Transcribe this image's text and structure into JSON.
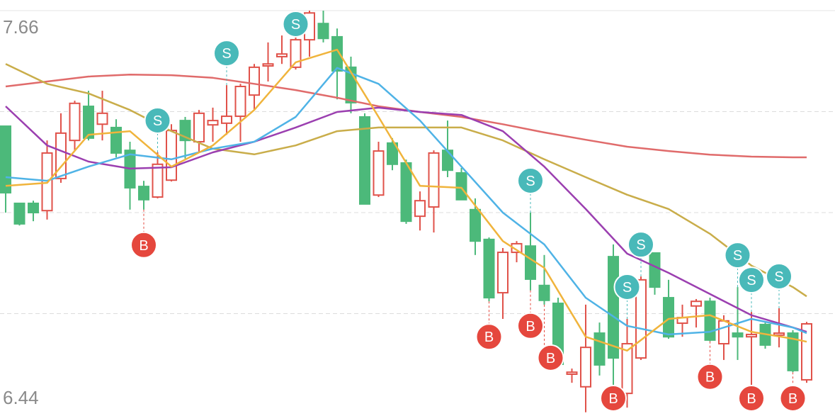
{
  "chart_data": {
    "type": "candlestick",
    "ylim": [
      6.44,
      7.66
    ],
    "yticks": [
      7.66,
      6.44
    ],
    "grid_values": [
      7.355,
      7.05,
      6.745
    ],
    "up_color": "#e0524a",
    "down_color": "#4cb97a",
    "candles": {
      "open": [
        7.311,
        7.078,
        7.078,
        7.056,
        7.153,
        7.268,
        7.371,
        7.317,
        7.307,
        7.238,
        7.129,
        7.097,
        7.148,
        7.328,
        7.264,
        7.315,
        7.32,
        7.341,
        7.405,
        7.493,
        7.521,
        7.489,
        7.572,
        7.621,
        7.581,
        7.489,
        7.339,
        7.103,
        7.26,
        7.2,
        7.039,
        7.067,
        7.238,
        7.17,
        7.059,
        6.969,
        6.808,
        6.93,
        6.949,
        6.83,
        6.776,
        6.562,
        6.524,
        6.686,
        6.917,
        6.504,
        6.611,
        6.928,
        6.793,
        6.716,
        6.768,
        6.782,
        6.654,
        6.686,
        6.675,
        6.712,
        6.68,
        6.686,
        6.545
      ],
      "high": [
        7.311,
        7.078,
        7.086,
        7.268,
        7.35,
        7.388,
        7.418,
        7.418,
        7.332,
        7.264,
        7.146,
        7.232,
        7.317,
        7.339,
        7.36,
        7.367,
        7.435,
        7.439,
        7.499,
        7.564,
        7.585,
        7.606,
        7.66,
        7.66,
        7.606,
        7.521,
        7.35,
        7.264,
        7.275,
        7.21,
        7.114,
        7.238,
        7.328,
        7.185,
        7.093,
        6.975,
        6.943,
        6.964,
        7.05,
        6.922,
        6.793,
        6.579,
        6.772,
        6.718,
        6.954,
        6.729,
        6.857,
        6.93,
        6.847,
        6.772,
        6.789,
        6.793,
        6.74,
        6.825,
        6.75,
        6.718,
        6.761,
        6.695,
        6.72
      ],
      "low": [
        7.05,
        7.011,
        7.024,
        7.029,
        7.14,
        7.236,
        7.268,
        7.268,
        7.217,
        7.059,
        7.059,
        7.093,
        7.144,
        7.213,
        7.23,
        7.264,
        7.285,
        7.264,
        7.36,
        7.446,
        7.499,
        7.482,
        7.521,
        7.564,
        7.392,
        7.35,
        7.076,
        7.097,
        7.178,
        7.016,
        6.996,
        6.99,
        7.157,
        7.089,
        6.922,
        6.782,
        6.729,
        6.9,
        6.815,
        6.772,
        6.583,
        6.536,
        6.447,
        6.558,
        6.494,
        6.461,
        6.605,
        6.802,
        6.669,
        6.675,
        6.703,
        6.661,
        6.605,
        6.605,
        6.515,
        6.639,
        6.643,
        6.568,
        6.536
      ],
      "close": [
        7.11,
        7.016,
        7.05,
        7.23,
        7.29,
        7.38,
        7.275,
        7.35,
        7.23,
        7.125,
        7.089,
        7.196,
        7.298,
        7.268,
        7.35,
        7.328,
        7.341,
        7.431,
        7.489,
        7.499,
        7.529,
        7.572,
        7.653,
        7.576,
        7.478,
        7.382,
        7.076,
        7.236,
        7.196,
        7.024,
        7.086,
        7.23,
        7.178,
        7.089,
        6.964,
        6.793,
        6.93,
        6.956,
        6.849,
        6.785,
        6.592,
        6.568,
        6.643,
        6.59,
        6.611,
        6.654,
        6.847,
        6.825,
        6.675,
        6.733,
        6.782,
        6.665,
        6.723,
        6.675,
        6.682,
        6.65,
        6.686,
        6.573,
        6.714
      ]
    },
    "lines": [
      {
        "color": "#e06b6b",
        "x": [
          0,
          3,
          6,
          9,
          12,
          15,
          18,
          21,
          24,
          27,
          30,
          33,
          36,
          39,
          42,
          45,
          48,
          51,
          54,
          57,
          58
        ],
        "values": [
          7.431,
          7.446,
          7.461,
          7.467,
          7.465,
          7.457,
          7.439,
          7.42,
          7.397,
          7.371,
          7.354,
          7.339,
          7.317,
          7.292,
          7.27,
          7.249,
          7.236,
          7.225,
          7.219,
          7.217,
          7.217
        ]
      },
      {
        "color": "#c9ad4a",
        "x": [
          0,
          3,
          6,
          9,
          12,
          15,
          18,
          21,
          24,
          27,
          30,
          33,
          36,
          39,
          42,
          45,
          48,
          51,
          54,
          57,
          58
        ],
        "values": [
          7.499,
          7.439,
          7.41,
          7.36,
          7.296,
          7.243,
          7.226,
          7.253,
          7.296,
          7.307,
          7.307,
          7.307,
          7.268,
          7.211,
          7.157,
          7.104,
          7.061,
          6.986,
          6.89,
          6.825,
          6.797
        ]
      },
      {
        "color": "#9b3fb0",
        "x": [
          0,
          3,
          6,
          9,
          12,
          15,
          18,
          21,
          24,
          27,
          30,
          33,
          36,
          39,
          42,
          45,
          48,
          51,
          54,
          57,
          58
        ],
        "values": [
          7.371,
          7.253,
          7.204,
          7.183,
          7.187,
          7.232,
          7.264,
          7.307,
          7.354,
          7.367,
          7.354,
          7.345,
          7.296,
          7.189,
          7.061,
          6.926,
          6.868,
          6.804,
          6.74,
          6.703,
          6.69
        ]
      },
      {
        "color": "#4fb3e6",
        "x": [
          0,
          3,
          6,
          9,
          12,
          15,
          18,
          21,
          24,
          27,
          30,
          33,
          36,
          39,
          42,
          45,
          48,
          51,
          54,
          57,
          58
        ],
        "values": [
          7.157,
          7.146,
          7.189,
          7.226,
          7.211,
          7.243,
          7.264,
          7.339,
          7.487,
          7.439,
          7.328,
          7.189,
          7.05,
          6.954,
          6.793,
          6.708,
          6.682,
          6.69,
          6.729,
          6.703,
          6.686
        ]
      },
      {
        "color": "#f0b43c",
        "x": [
          0,
          3,
          6,
          9,
          12,
          15,
          18,
          21,
          24,
          27,
          30,
          33,
          36,
          39,
          42,
          45,
          48,
          51,
          54,
          57,
          58
        ],
        "values": [
          7.131,
          7.14,
          7.285,
          7.296,
          7.189,
          7.253,
          7.36,
          7.504,
          7.542,
          7.339,
          7.131,
          7.125,
          6.964,
          6.883,
          6.675,
          6.633,
          6.729,
          6.74,
          6.69,
          6.669,
          6.66
        ]
      }
    ],
    "sell_color": "#49b9b9",
    "buy_color": "#e5473d",
    "signals": [
      {
        "index": 16,
        "label": "S"
      },
      {
        "index": 21,
        "label": "S"
      },
      {
        "index": 11,
        "label": "S"
      },
      {
        "index": 38,
        "label": "S"
      },
      {
        "index": 46,
        "label": "S"
      },
      {
        "index": 45,
        "label": "S"
      },
      {
        "index": 53,
        "label": "S"
      },
      {
        "index": 54,
        "label": "S"
      },
      {
        "index": 56,
        "label": "S"
      },
      {
        "index": 10,
        "label": "B"
      },
      {
        "index": 35,
        "label": "B"
      },
      {
        "index": 38,
        "label": "B"
      },
      {
        "index": 39,
        "label": "B"
      },
      {
        "index": 44,
        "label": "B"
      },
      {
        "index": 51,
        "label": "B"
      },
      {
        "index": 54,
        "label": "B"
      },
      {
        "index": 57,
        "label": "B"
      }
    ]
  }
}
